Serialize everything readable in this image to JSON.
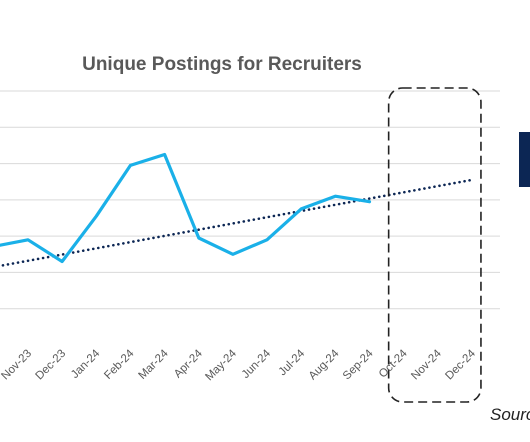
{
  "chart_data": {
    "type": "line",
    "title": "Unique Postings for Recruiters",
    "categories": [
      "Nov-23",
      "Dec-23",
      "Jan-24",
      "Feb-24",
      "Mar-24",
      "Apr-24",
      "May-24",
      "Jun-24",
      "Jul-24",
      "Aug-24",
      "Sep-24",
      "Oct-24",
      "Nov-24",
      "Dec-24"
    ],
    "series": [
      {
        "values": [
          2.9,
          2.3,
          3.55,
          4.95,
          5.25,
          2.95,
          2.5,
          2.9,
          3.75,
          4.1,
          3.95,
          null,
          null,
          null
        ],
        "color": "#1ab0e8"
      }
    ],
    "trendline": {
      "style": "dotted",
      "color": "#0c2654",
      "start": 2.45,
      "end": 4.55
    },
    "forecast_window": {
      "from": "Oct-24",
      "to": "Dec-24",
      "style": "dashed-rounded-box"
    },
    "ylim": [
      0,
      7
    ],
    "grid": true,
    "xlabel": "",
    "ylabel": ""
  },
  "footer": {
    "source": "Source"
  },
  "colors": {
    "series": "#1ab0e8",
    "trend": "#0c2654",
    "grid": "#d9d9d9",
    "title": "#595959",
    "accent_block": "#0c2654"
  }
}
